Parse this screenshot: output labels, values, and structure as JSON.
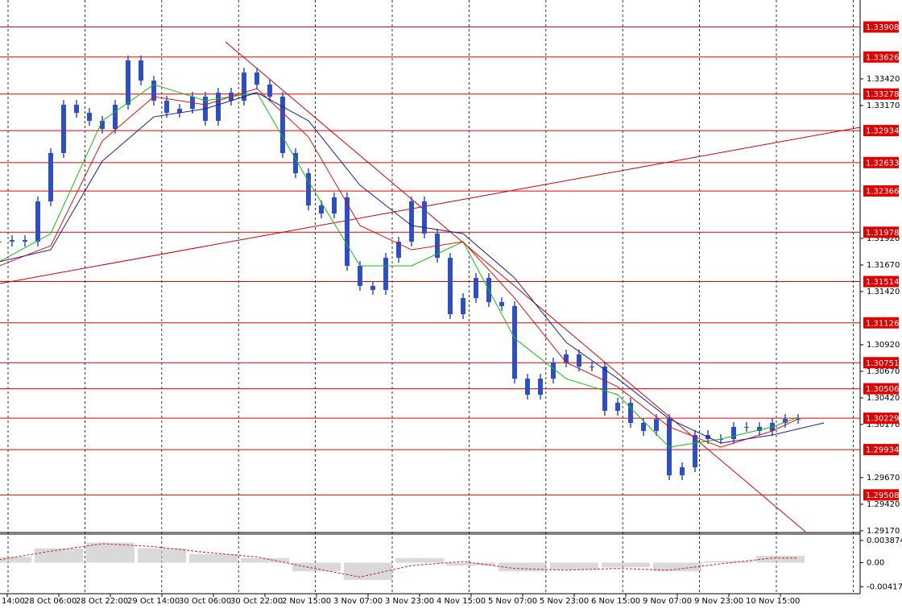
{
  "chart_data": {
    "type": "candlestick",
    "categories": [
      "14:00",
      null,
      null,
      null,
      "28 Oct 06:00",
      null,
      null,
      null,
      "28 Oct 22:00",
      null,
      null,
      null,
      "29 Oct 14:00",
      null,
      null,
      null,
      "30 Oct 06:00",
      null,
      null,
      null,
      "30 Oct 22:00",
      null,
      null,
      null,
      "2 Nov 15:00",
      null,
      null,
      null,
      "3 Nov 07:00",
      null,
      null,
      null,
      "3 Nov 23:00",
      null,
      null,
      null,
      "4 Nov 15:00",
      null,
      null,
      null,
      "5 Nov 07:00",
      null,
      null,
      null,
      "5 Nov 23:00",
      null,
      null,
      null,
      "6 Nov 15:00",
      null,
      null,
      null,
      "9 Nov 07:00",
      null,
      null,
      null,
      "9 Nov 23:00",
      null,
      null,
      null,
      "10 Nov 15:00",
      null,
      null
    ],
    "values": [
      1.31889,
      1.31904,
      1.31889,
      1.32268,
      1.32723,
      1.33177,
      1.33101,
      1.33026,
      1.3295,
      1.33177,
      1.33594,
      1.33404,
      1.33215,
      1.33101,
      1.33139,
      1.33253,
      1.33026,
      1.33291,
      1.33215,
      1.3348,
      1.33367,
      1.33253,
      1.32723,
      1.32533,
      1.3223,
      1.32154,
      1.32306,
      1.31662,
      1.31473,
      1.31435,
      1.31738,
      1.31889,
      1.32268,
      1.31965,
      1.31738,
      1.31207,
      1.31359,
      1.31548,
      1.31321,
      1.31283,
      1.30601,
      1.3045,
      1.30601,
      1.30753,
      1.30829,
      1.30715,
      1.30715,
      1.30298,
      1.30374,
      1.30185,
      1.30109,
      1.30222,
      1.29692,
      1.29768,
      1.30071,
      1.30033,
      1.30033,
      1.30147,
      1.30147,
      1.30109,
      1.30185,
      1.30222,
      1.30222
    ],
    "color": "#2f4fc4",
    "moving_averages": [
      {
        "color": "#10c010",
        "x": [
          0,
          4,
          8,
          12,
          16,
          20,
          24,
          28,
          32,
          36,
          40,
          44,
          48,
          52,
          56,
          60,
          62
        ],
        "values": [
          1.317,
          1.31965,
          1.33026,
          1.33367,
          1.33215,
          1.33291,
          1.32457,
          1.31662,
          1.31662,
          1.31889,
          1.3098,
          1.30601,
          1.3045,
          1.29957,
          1.30033,
          1.30147,
          1.30238
        ]
      },
      {
        "color": "#e01010",
        "x": [
          0,
          4,
          8,
          12,
          16,
          20,
          24,
          28,
          32,
          36,
          40,
          44,
          48,
          52,
          56,
          60,
          62
        ],
        "values": [
          1.31662,
          1.31851,
          1.32836,
          1.33253,
          1.33177,
          1.33329,
          1.32874,
          1.32041,
          1.31813,
          1.31889,
          1.31359,
          1.30753,
          1.30525,
          1.30147,
          1.29957,
          1.30109,
          1.30222
        ]
      },
      {
        "color": "#1a1aa0",
        "x": [
          0,
          4,
          8,
          12,
          16,
          20,
          24,
          28,
          32,
          36,
          40,
          44,
          48,
          52,
          56,
          60,
          64
        ],
        "values": [
          1.317,
          1.31813,
          1.32647,
          1.33063,
          1.33139,
          1.33291,
          1.33026,
          1.3242,
          1.32041,
          1.31965,
          1.31548,
          1.30942,
          1.30601,
          1.30222,
          1.29995,
          1.30071,
          1.30185
        ]
      }
    ],
    "ylim": [
      1.29162,
      1.34162
    ],
    "yticks": [
      {
        "value": 1.3342,
        "label": "1.33420"
      },
      {
        "value": 1.3317,
        "label": "1.33170"
      },
      {
        "value": 1.3192,
        "label": "1.31920"
      },
      {
        "value": 1.3167,
        "label": "1.31670"
      },
      {
        "value": 1.3142,
        "label": "1.31420"
      },
      {
        "value": 1.3092,
        "label": "1.30920"
      },
      {
        "value": 1.3067,
        "label": "1.30670"
      },
      {
        "value": 1.3042,
        "label": "1.30420"
      },
      {
        "value": 1.3017,
        "label": "1.30170"
      },
      {
        "value": 1.2967,
        "label": "1.29670"
      },
      {
        "value": 1.2942,
        "label": "1.29420"
      },
      {
        "value": 1.2917,
        "label": "1.29170"
      }
    ],
    "levels": [
      {
        "value": 1.33908,
        "label": "1.33908"
      },
      {
        "value": 1.33626,
        "label": "1.33626"
      },
      {
        "value": 1.33278,
        "label": "1.33278"
      },
      {
        "value": 1.32934,
        "label": "1.32934"
      },
      {
        "value": 1.32633,
        "label": "1.32633"
      },
      {
        "value": 1.32366,
        "label": "1.32366"
      },
      {
        "value": 1.31978,
        "label": "1.31978"
      },
      {
        "value": 1.31514,
        "label": "1.31514"
      },
      {
        "value": 1.31126,
        "label": "1.31126"
      },
      {
        "value": 1.30751,
        "label": "1.30751"
      },
      {
        "value": 1.30506,
        "label": "1.30506"
      },
      {
        "value": 1.30229,
        "label": "1.30229"
      },
      {
        "value": 1.29934,
        "label": "1.29934"
      },
      {
        "value": 1.29508,
        "label": "1.29508"
      }
    ],
    "level_color": "#e00000",
    "oscillator": {
      "x": [
        0,
        4,
        8,
        12,
        16,
        20,
        24,
        28,
        32,
        36,
        40,
        44,
        48,
        52,
        56,
        60
      ],
      "values": [
        0.001,
        0.0025,
        0.0035,
        0.0025,
        0.0015,
        0.0008,
        -0.0015,
        -0.003,
        0.0008,
        -0.0005,
        -0.0015,
        -0.0012,
        -0.0008,
        -0.0015,
        0.0003,
        0.0012
      ],
      "color": "#c0c0c0",
      "signal": {
        "x": [
          0,
          4,
          8,
          12,
          16,
          20,
          24,
          28,
          32,
          36,
          40,
          44,
          48,
          52,
          56,
          60,
          62
        ],
        "values": [
          0.0005,
          0.002,
          0.0033,
          0.0028,
          0.0018,
          0.001,
          -0.0008,
          -0.0025,
          -0.0005,
          0.0002,
          -0.001,
          -0.0013,
          -0.001,
          -0.0013,
          -0.0002,
          0.0008,
          0.0008
        ],
        "color": "#d02020"
      },
      "ylim": [
        -0.00526,
        0.00484
      ],
      "yticks": [
        0.003874,
        {
          "value": 0,
          "label": "0.00"
        },
        -0.004175
      ]
    }
  }
}
